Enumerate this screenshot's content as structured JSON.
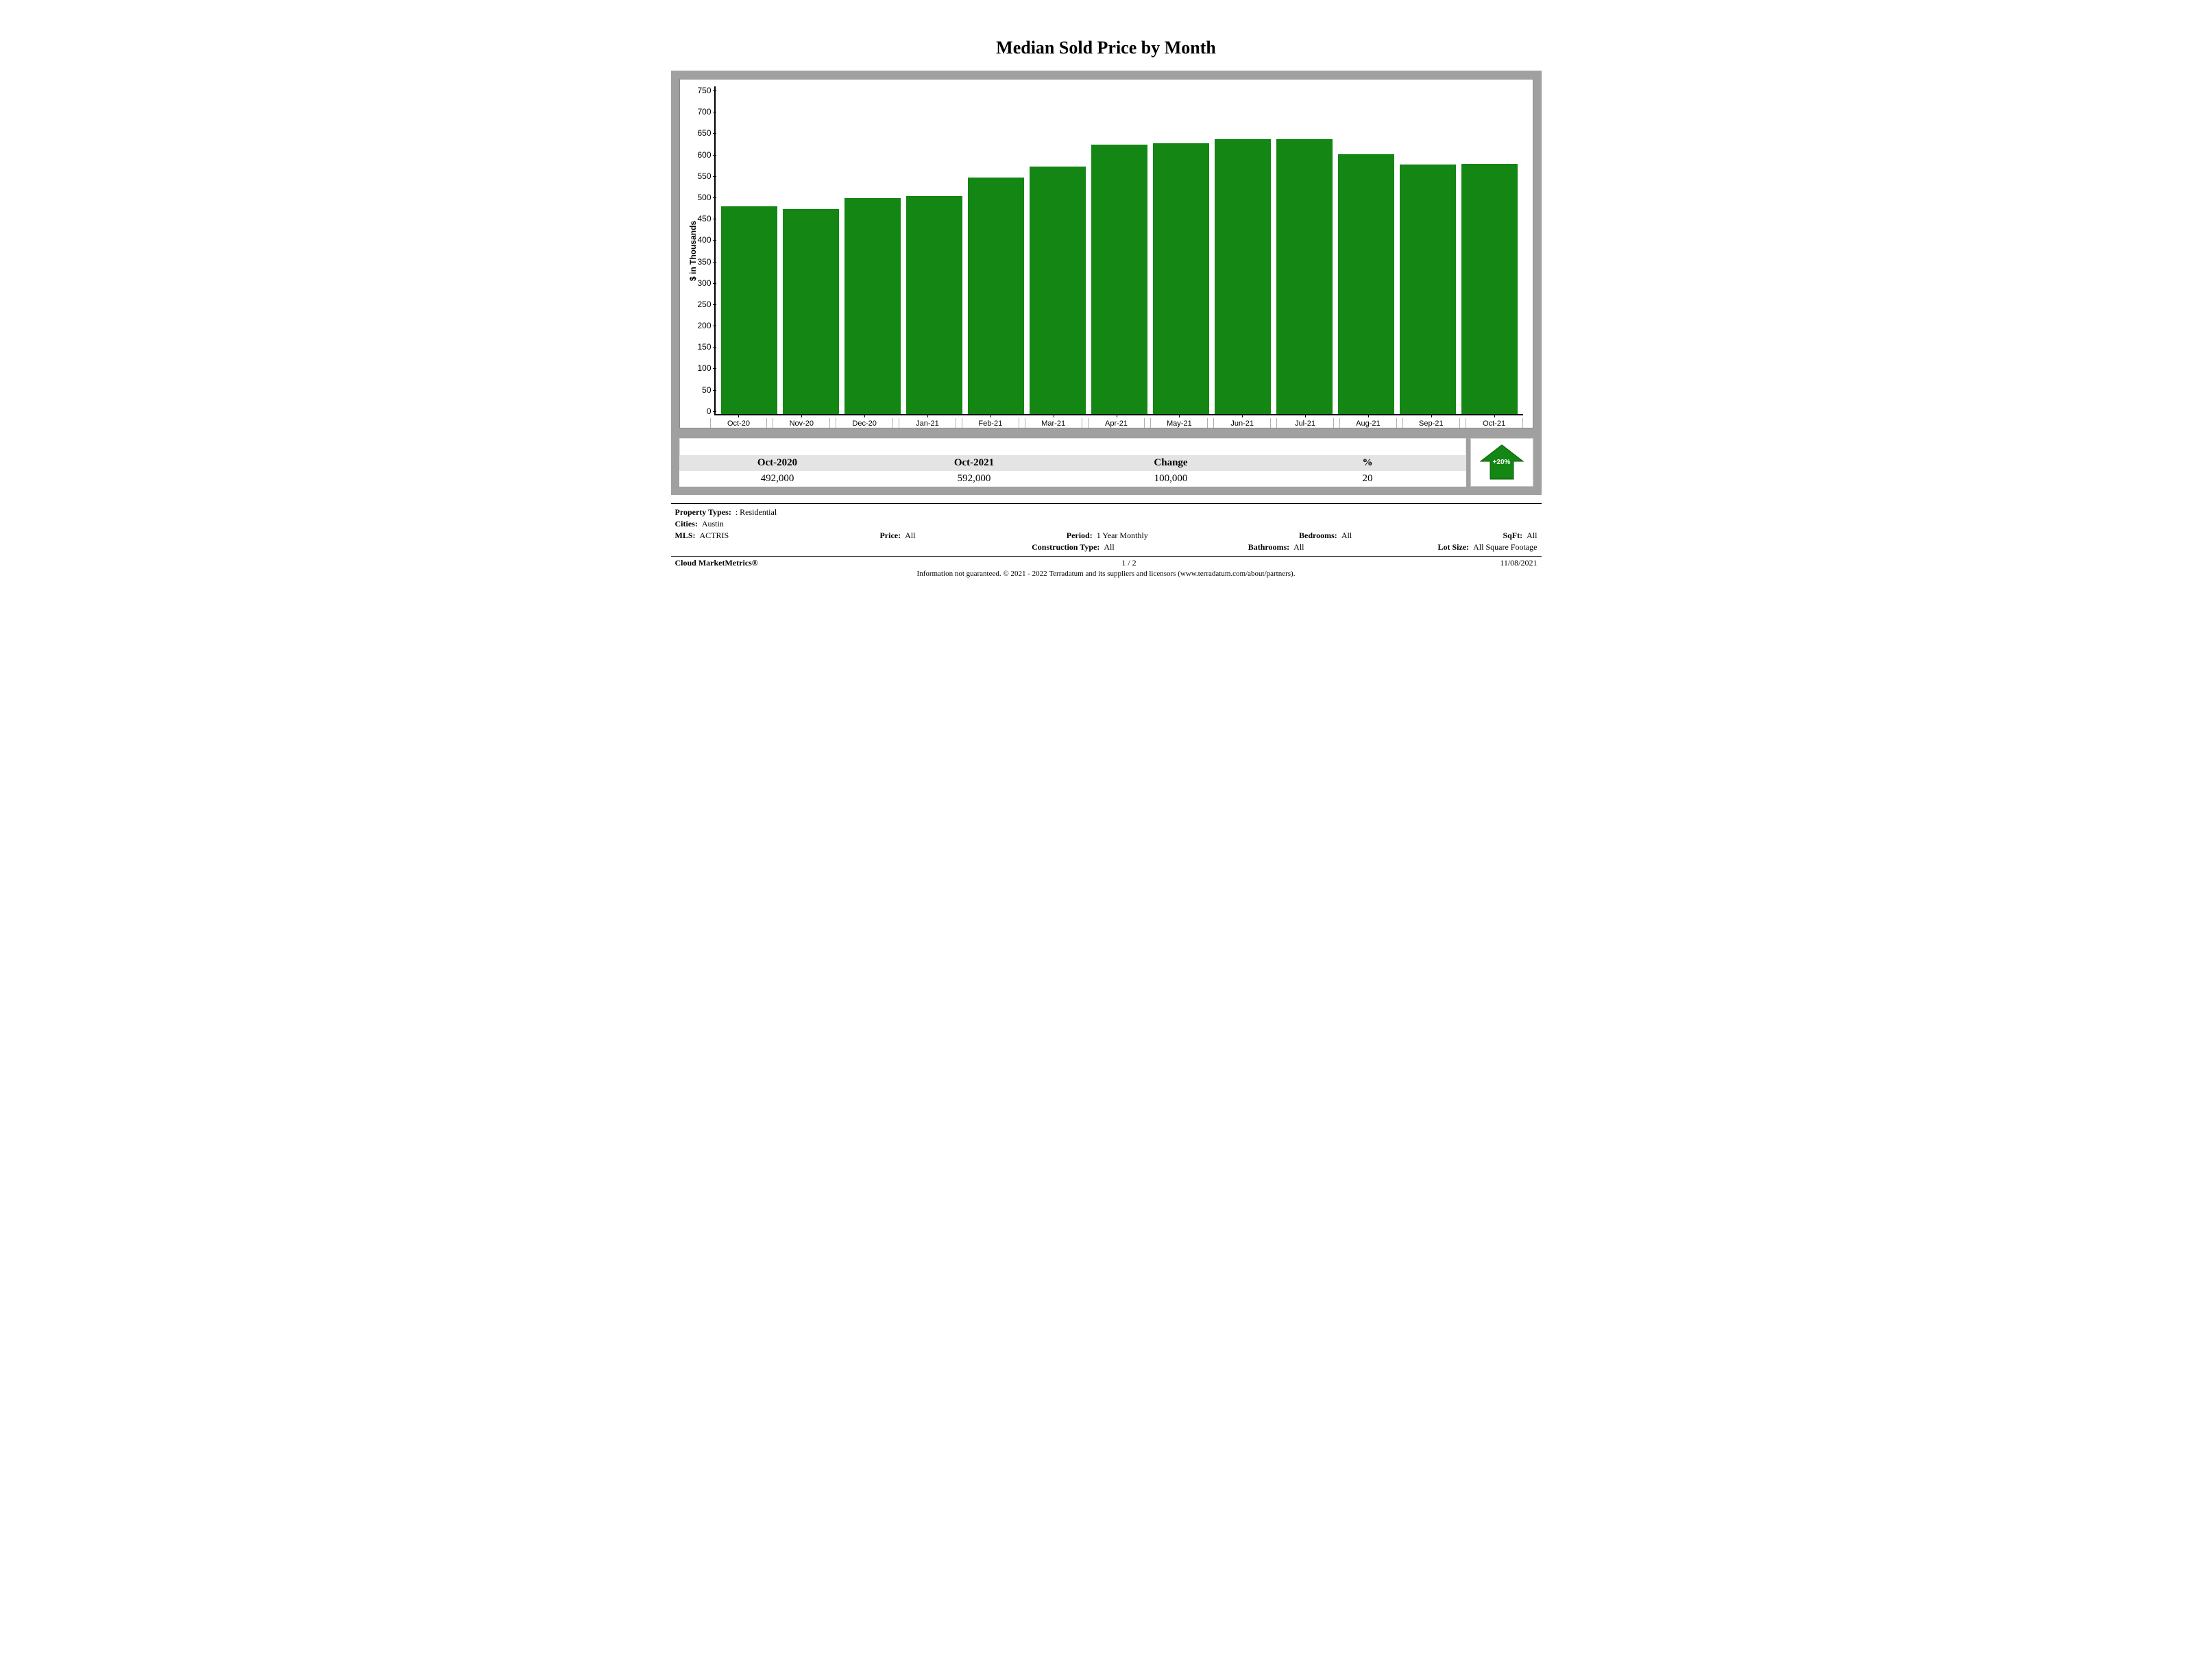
{
  "title": "Median Sold Price by Month",
  "chart": {
    "type": "bar",
    "ylabel": "$ in Thousands",
    "ylim": [
      0,
      775
    ],
    "yticks": [
      0,
      50,
      100,
      150,
      200,
      250,
      300,
      350,
      400,
      450,
      500,
      550,
      600,
      650,
      700,
      750
    ],
    "categories": [
      "Oct-20",
      "Nov-20",
      "Dec-20",
      "Jan-21",
      "Feb-21",
      "Mar-21",
      "Apr-21",
      "May-21",
      "Jun-21",
      "Jul-21",
      "Aug-21",
      "Sep-21",
      "Oct-21"
    ],
    "values": [
      492,
      485,
      510,
      515,
      560,
      585,
      638,
      640,
      650,
      650,
      615,
      590,
      592
    ],
    "bar_color": "#138613",
    "axis_color": "#000000",
    "background_color": "#ffffff",
    "panel_border_color": "#a0a0a0",
    "tick_font_size": 12,
    "label_font_size": 12
  },
  "summary": {
    "headers": [
      "Oct-2020",
      "Oct-2021",
      "Change",
      "%"
    ],
    "values": [
      "492,000",
      "592,000",
      "100,000",
      "20"
    ],
    "arrow": {
      "direction": "up",
      "color": "#138613",
      "label": "+20%"
    }
  },
  "filters": {
    "property_types_label": "Property Types:",
    "property_types_value": ": Residential",
    "cities_label": "Cities:",
    "cities_value": "Austin",
    "mls_label": "MLS:",
    "mls_value": "ACTRIS",
    "price_label": "Price:",
    "price_value": "All",
    "period_label": "Period:",
    "period_value": "1 Year Monthly",
    "bedrooms_label": "Bedrooms:",
    "bedrooms_value": "All",
    "sqft_label": "SqFt:",
    "sqft_value": "All",
    "construction_label": "Construction Type:",
    "construction_value": "All",
    "bathrooms_label": "Bathrooms:",
    "bathrooms_value": "All",
    "lot_label": "Lot Size:",
    "lot_value": "All Square Footage"
  },
  "footer": {
    "brand": "Cloud MarketMetrics®",
    "page": "1 / 2",
    "date": "11/08/2021",
    "disclaimer": "Information not guaranteed. © 2021 - 2022 Terradatum and its suppliers and licensors (www.terradatum.com/about/partners)."
  }
}
